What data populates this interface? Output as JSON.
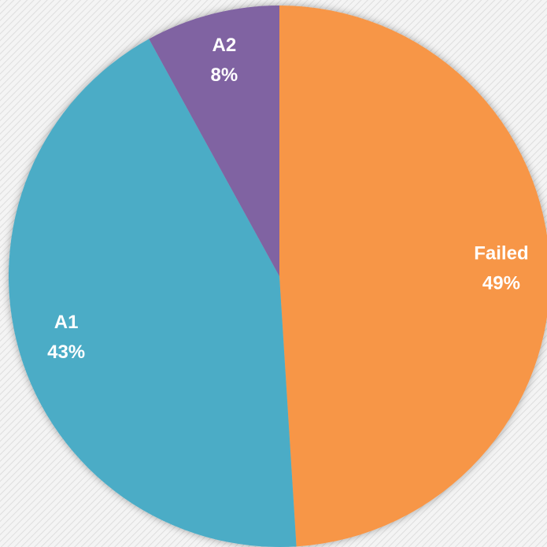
{
  "chart_data": {
    "type": "pie",
    "categories": [
      "Failed",
      "A1",
      "A2"
    ],
    "values": [
      49,
      43,
      8
    ],
    "value_labels": [
      "49%",
      "43%",
      "8%"
    ],
    "colors": [
      "#f79646",
      "#4bacc6",
      "#8064a2"
    ]
  }
}
